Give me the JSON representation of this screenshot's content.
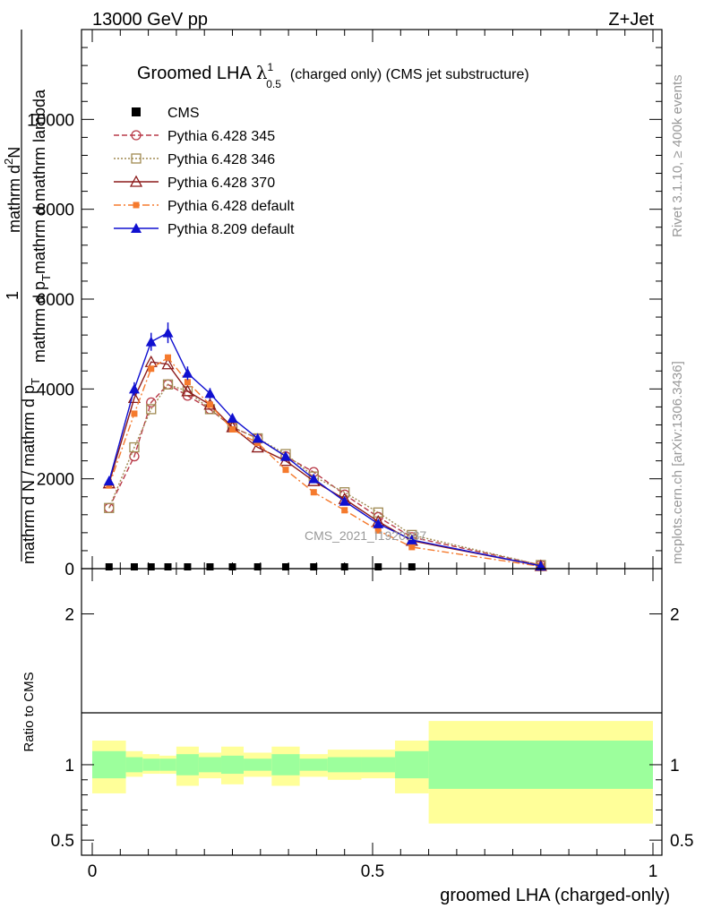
{
  "header": {
    "energy": "13000 GeV pp",
    "process": "Z+Jet"
  },
  "side_labels": {
    "rivet": "Rivet 3.1.10, ≥ 400k events",
    "mcplots": "mcplots.cern.ch [arXiv:1306.3436]"
  },
  "colors": {
    "cms": "#000000",
    "p345": "#b83a48",
    "p346": "#a08a52",
    "p370": "#8b1a1a",
    "p6def": "#f57a2d",
    "p8def": "#1010d0",
    "band_inner": "#9cff9c",
    "band_outer": "#ffff99"
  },
  "chart_data": [
    {
      "type": "line",
      "title": "Groomed LHA",
      "title_symbol": "λ",
      "title_superscript": "1",
      "title_subscript": "0.5",
      "title_suffix": "(charged only) (CMS jet substructure)",
      "watermark": "CMS_2021_I1920187",
      "xlim": [
        0,
        1
      ],
      "ylim": [
        0,
        12000
      ],
      "ylabel_line1": "mathrm d",
      "ylabel_line1_sup": "2",
      "ylabel_line1_b": "N",
      "ylabel_line2": "mathrm d p",
      "ylabel_line2_sub": "T",
      "ylabel_line2_b": "mathrm d mathrm lambda",
      "ylabel_one": "1",
      "ylabel_denominator": "mathrm d N / mathrm d p",
      "ylabel_denominator_sub": "T",
      "yticks": [
        0,
        2000,
        4000,
        6000,
        8000,
        10000
      ],
      "ytick_labels": [
        "0",
        "2000",
        "4000",
        "6000",
        "8000",
        "10000"
      ],
      "x": [
        0.03,
        0.075,
        0.105,
        0.135,
        0.17,
        0.21,
        0.25,
        0.295,
        0.345,
        0.395,
        0.45,
        0.51,
        0.57,
        0.8
      ],
      "series": [
        {
          "name": "CMS",
          "key": "cms",
          "marker": "square-filled",
          "dash": "none",
          "values": [
            0,
            0,
            0,
            0,
            0,
            0,
            0,
            0,
            0,
            0,
            0,
            0,
            0,
            0
          ]
        },
        {
          "name": "Pythia 6.428 345",
          "key": "p345",
          "marker": "circle-open",
          "dash": "6,3",
          "values": [
            1350,
            2500,
            3700,
            4100,
            3850,
            3550,
            3150,
            2900,
            2500,
            2150,
            1650,
            1150,
            700,
            80
          ]
        },
        {
          "name": "Pythia 6.428 346",
          "key": "p346",
          "marker": "square-open",
          "dash": "2,2",
          "values": [
            1350,
            2700,
            3550,
            4100,
            3950,
            3550,
            3150,
            2900,
            2550,
            2050,
            1700,
            1250,
            750,
            80
          ]
        },
        {
          "name": "Pythia 6.428 370",
          "key": "p370",
          "marker": "triangle-open",
          "dash": "none",
          "values": [
            1900,
            3800,
            4600,
            4550,
            3950,
            3650,
            3150,
            2700,
            2400,
            1950,
            1550,
            1050,
            620,
            60
          ]
        },
        {
          "name": "Pythia 6.428 default",
          "key": "p6def",
          "marker": "square-filled",
          "dash": "8,3,2,3",
          "values": [
            1850,
            3450,
            4450,
            4700,
            4150,
            3650,
            3100,
            2800,
            2200,
            1700,
            1300,
            850,
            480,
            50
          ]
        },
        {
          "name": "Pythia 8.209 default",
          "key": "p8def",
          "marker": "triangle-filled",
          "dash": "none",
          "values": [
            1950,
            4000,
            5050,
            5250,
            4350,
            3900,
            3350,
            2900,
            2500,
            2000,
            1500,
            1000,
            640,
            60
          ]
        }
      ],
      "errors_p8def": [
        80,
        150,
        200,
        230,
        150,
        120,
        100,
        80,
        70,
        60,
        50,
        40,
        30,
        10
      ]
    },
    {
      "type": "area",
      "ylabel": "Ratio to CMS",
      "xlabel": "groomed LHA (charged-only)",
      "xlim": [
        0,
        1
      ],
      "ylim": [
        0.4,
        2.3
      ],
      "xtick_labels": [
        "0",
        "0.5",
        "1"
      ],
      "xticks": [
        0,
        0.5,
        1
      ],
      "ytick_labels": [
        "0.5",
        "1",
        "2"
      ],
      "yticks": [
        0.5,
        1,
        2
      ],
      "bins": [
        {
          "x0": 0.0,
          "x1": 0.06,
          "inner": [
            0.91,
            1.09
          ],
          "outer": [
            0.81,
            1.16
          ]
        },
        {
          "x0": 0.06,
          "x1": 0.09,
          "inner": [
            0.95,
            1.05
          ],
          "outer": [
            0.92,
            1.09
          ]
        },
        {
          "x0": 0.09,
          "x1": 0.12,
          "inner": [
            0.96,
            1.04
          ],
          "outer": [
            0.94,
            1.07
          ]
        },
        {
          "x0": 0.12,
          "x1": 0.15,
          "inner": [
            0.96,
            1.04
          ],
          "outer": [
            0.94,
            1.06
          ]
        },
        {
          "x0": 0.15,
          "x1": 0.19,
          "inner": [
            0.93,
            1.07
          ],
          "outer": [
            0.86,
            1.12
          ]
        },
        {
          "x0": 0.19,
          "x1": 0.23,
          "inner": [
            0.95,
            1.05
          ],
          "outer": [
            0.91,
            1.08
          ]
        },
        {
          "x0": 0.23,
          "x1": 0.27,
          "inner": [
            0.94,
            1.06
          ],
          "outer": [
            0.87,
            1.12
          ]
        },
        {
          "x0": 0.27,
          "x1": 0.32,
          "inner": [
            0.96,
            1.04
          ],
          "outer": [
            0.92,
            1.08
          ]
        },
        {
          "x0": 0.32,
          "x1": 0.37,
          "inner": [
            0.93,
            1.07
          ],
          "outer": [
            0.86,
            1.12
          ]
        },
        {
          "x0": 0.37,
          "x1": 0.42,
          "inner": [
            0.96,
            1.04
          ],
          "outer": [
            0.92,
            1.07
          ]
        },
        {
          "x0": 0.42,
          "x1": 0.48,
          "inner": [
            0.95,
            1.05
          ],
          "outer": [
            0.9,
            1.1
          ]
        },
        {
          "x0": 0.48,
          "x1": 0.54,
          "inner": [
            0.95,
            1.05
          ],
          "outer": [
            0.91,
            1.1
          ]
        },
        {
          "x0": 0.54,
          "x1": 0.6,
          "inner": [
            0.91,
            1.09
          ],
          "outer": [
            0.81,
            1.16
          ]
        },
        {
          "x0": 0.6,
          "x1": 1.0,
          "inner": [
            0.84,
            1.16
          ],
          "outer": [
            0.61,
            1.29
          ]
        }
      ]
    }
  ]
}
